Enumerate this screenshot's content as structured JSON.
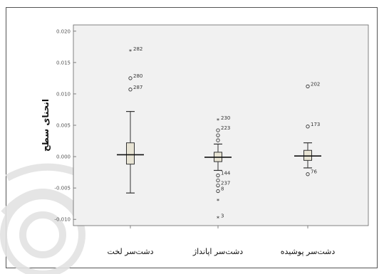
{
  "chart_data": {
    "type": "box",
    "ylabel": "انحنای سطح",
    "ylim": [
      -0.011,
      0.021
    ],
    "yticks": [
      {
        "value": 0.02,
        "label": "0.020"
      },
      {
        "value": 0.015,
        "label": "0.015"
      },
      {
        "value": 0.01,
        "label": "0.010"
      },
      {
        "value": 0.005,
        "label": "0.005"
      },
      {
        "value": 0.0,
        "label": "0.000"
      },
      {
        "value": -0.005,
        "label": "-0.005"
      },
      {
        "value": -0.01,
        "label": "-0.010"
      }
    ],
    "categories": [
      "دشت‌سر لخت",
      "دشت‌سر اپانداژ",
      "دشت‌سر پوشیده"
    ],
    "boxes": [
      {
        "category": "دشت‌سر لخت",
        "min": -0.0058,
        "q1": -0.0012,
        "median": 0.0003,
        "q3": 0.0022,
        "max": 0.0072,
        "outliers": [
          {
            "value": 0.0168,
            "label": "282",
            "marker": "star"
          },
          {
            "value": 0.0125,
            "label": "280",
            "marker": "circle"
          },
          {
            "value": 0.0107,
            "label": "287",
            "marker": "circle"
          }
        ]
      },
      {
        "category": "دشت‌سر اپانداژ",
        "min": -0.0022,
        "q1": -0.0008,
        "median": -0.0001,
        "q3": 0.0007,
        "max": 0.002,
        "outliers": [
          {
            "value": 0.0058,
            "label": "230",
            "marker": "star"
          },
          {
            "value": 0.0042,
            "label": "223",
            "marker": "circle"
          },
          {
            "value": 0.0034,
            "label": "",
            "marker": "circle"
          },
          {
            "value": 0.0026,
            "label": "",
            "marker": "circle"
          },
          {
            "value": -0.003,
            "label": "144",
            "marker": "circle"
          },
          {
            "value": -0.0038,
            "label": "",
            "marker": "circle"
          },
          {
            "value": -0.0046,
            "label": "237",
            "marker": "circle"
          },
          {
            "value": -0.0055,
            "label": "8",
            "marker": "circle"
          },
          {
            "value": -0.007,
            "label": "",
            "marker": "star"
          },
          {
            "value": -0.0098,
            "label": "3",
            "marker": "star"
          }
        ]
      },
      {
        "category": "دشت‌سر پوشیده",
        "min": -0.0018,
        "q1": -0.0006,
        "median": 0.0001,
        "q3": 0.001,
        "max": 0.0022,
        "outliers": [
          {
            "value": 0.0112,
            "label": "202",
            "marker": "circle"
          },
          {
            "value": 0.0048,
            "label": "173",
            "marker": "circle"
          },
          {
            "value": -0.0028,
            "label": "76",
            "marker": "circle"
          }
        ]
      }
    ]
  }
}
